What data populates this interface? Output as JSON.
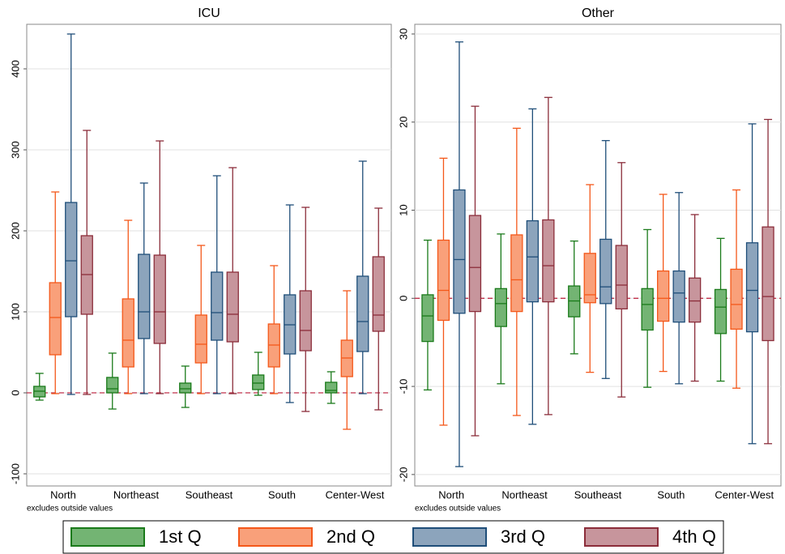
{
  "chart_data": [
    {
      "type": "box",
      "title": "ICU",
      "note": "excludes outside values",
      "categories": [
        "North",
        "Northeast",
        "Southeast",
        "South",
        "Center-West"
      ],
      "ylim": [
        -115,
        455
      ],
      "yticks": [
        -100,
        0,
        100,
        200,
        300,
        400
      ],
      "grid": true,
      "reference_line": 0,
      "reference_color": "#c0304a",
      "series": [
        {
          "name": "1st Q",
          "color": "#73b473",
          "edge": "#1a7a1a",
          "values": [
            {
              "low": -9,
              "q1": -5,
              "median": 2,
              "q3": 8,
              "high": 24
            },
            {
              "low": -20,
              "q1": 0,
              "median": 5,
              "q3": 19,
              "high": 49
            },
            {
              "low": -18,
              "q1": 0,
              "median": 5,
              "q3": 12,
              "high": 33
            },
            {
              "low": -3,
              "q1": 4,
              "median": 12,
              "q3": 22,
              "high": 50
            },
            {
              "low": -13,
              "q1": 0,
              "median": 3,
              "q3": 13,
              "high": 26
            }
          ]
        },
        {
          "name": "2nd Q",
          "color": "#f9a07a",
          "edge": "#f4581a",
          "values": [
            {
              "low": -1,
              "q1": 47,
              "median": 93,
              "q3": 136,
              "high": 248
            },
            {
              "low": -1,
              "q1": 32,
              "median": 65,
              "q3": 116,
              "high": 213
            },
            {
              "low": -1,
              "q1": 37,
              "median": 60,
              "q3": 96,
              "high": 182
            },
            {
              "low": -1,
              "q1": 32,
              "median": 59,
              "q3": 85,
              "high": 157
            },
            {
              "low": -45,
              "q1": 20,
              "median": 43,
              "q3": 65,
              "high": 126
            }
          ]
        },
        {
          "name": "3rd Q",
          "color": "#8ca4bc",
          "edge": "#1f4e79",
          "values": [
            {
              "low": -2,
              "q1": 94,
              "median": 163,
              "q3": 235,
              "high": 443
            },
            {
              "low": -1,
              "q1": 67,
              "median": 100,
              "q3": 171,
              "high": 259
            },
            {
              "low": -1,
              "q1": 65,
              "median": 99,
              "q3": 149,
              "high": 268
            },
            {
              "low": -12,
              "q1": 48,
              "median": 84,
              "q3": 121,
              "high": 232
            },
            {
              "low": -1,
              "q1": 51,
              "median": 88,
              "q3": 144,
              "high": 286
            }
          ]
        },
        {
          "name": "4th Q",
          "color": "#c7959c",
          "edge": "#8b2d3a",
          "values": [
            {
              "low": -2,
              "q1": 97,
              "median": 146,
              "q3": 194,
              "high": 324
            },
            {
              "low": -1,
              "q1": 61,
              "median": 100,
              "q3": 170,
              "high": 311
            },
            {
              "low": -1,
              "q1": 63,
              "median": 97,
              "q3": 149,
              "high": 278
            },
            {
              "low": -23,
              "q1": 52,
              "median": 77,
              "q3": 126,
              "high": 229
            },
            {
              "low": -21,
              "q1": 76,
              "median": 96,
              "q3": 168,
              "high": 228
            }
          ]
        }
      ]
    },
    {
      "type": "box",
      "title": "Other",
      "note": "excludes outside values",
      "categories": [
        "North",
        "Northeast",
        "Southeast",
        "South",
        "Center-West"
      ],
      "ylim": [
        -21.3,
        31.1
      ],
      "yticks": [
        -20,
        -10,
        0,
        10,
        20,
        30
      ],
      "grid": true,
      "reference_line": 0,
      "reference_color": "#c0304a",
      "series": [
        {
          "name": "1st Q",
          "color": "#73b473",
          "edge": "#1a7a1a",
          "values": [
            {
              "low": -10.4,
              "q1": -4.9,
              "median": -2.0,
              "q3": 0.4,
              "high": 6.6
            },
            {
              "low": -9.7,
              "q1": -3.2,
              "median": -0.6,
              "q3": 1.1,
              "high": 7.3
            },
            {
              "low": -6.3,
              "q1": -2.1,
              "median": -0.3,
              "q3": 1.4,
              "high": 6.5
            },
            {
              "low": -10.1,
              "q1": -3.6,
              "median": -0.7,
              "q3": 1.1,
              "high": 7.8
            },
            {
              "low": -9.4,
              "q1": -4.0,
              "median": -1.0,
              "q3": 1.0,
              "high": 6.8
            }
          ]
        },
        {
          "name": "2nd Q",
          "color": "#f9a07a",
          "edge": "#f4581a",
          "values": [
            {
              "low": -14.4,
              "q1": -2.5,
              "median": 0.9,
              "q3": 6.6,
              "high": 15.9
            },
            {
              "low": -13.3,
              "q1": -1.5,
              "median": 2.1,
              "q3": 7.2,
              "high": 19.3
            },
            {
              "low": -8.4,
              "q1": -0.5,
              "median": 0.4,
              "q3": 5.1,
              "high": 12.9
            },
            {
              "low": -8.3,
              "q1": -2.6,
              "median": 0,
              "q3": 3.1,
              "high": 11.8
            },
            {
              "low": -10.2,
              "q1": -3.5,
              "median": -0.7,
              "q3": 3.3,
              "high": 12.3
            }
          ]
        },
        {
          "name": "3rd Q",
          "color": "#8ca4bc",
          "edge": "#1f4e79",
          "values": [
            {
              "low": -19.1,
              "q1": -1.7,
              "median": 4.4,
              "q3": 12.3,
              "high": 29.1
            },
            {
              "low": -14.3,
              "q1": -0.4,
              "median": 4.7,
              "q3": 8.8,
              "high": 21.5
            },
            {
              "low": -9.1,
              "q1": -0.6,
              "median": 1.3,
              "q3": 6.7,
              "high": 17.9
            },
            {
              "low": -9.7,
              "q1": -2.7,
              "median": 0.6,
              "q3": 3.1,
              "high": 12.0
            },
            {
              "low": -16.5,
              "q1": -3.8,
              "median": 0.9,
              "q3": 6.3,
              "high": 19.8
            }
          ]
        },
        {
          "name": "4th Q",
          "color": "#c7959c",
          "edge": "#8b2d3a",
          "values": [
            {
              "low": -15.6,
              "q1": -1.5,
              "median": 3.5,
              "q3": 9.4,
              "high": 21.8
            },
            {
              "low": -13.2,
              "q1": -0.4,
              "median": 3.7,
              "q3": 8.9,
              "high": 22.8
            },
            {
              "low": -11.2,
              "q1": -1.2,
              "median": 1.5,
              "q3": 6.0,
              "high": 15.4
            },
            {
              "low": -9.4,
              "q1": -2.7,
              "median": -0.3,
              "q3": 2.3,
              "high": 9.5
            },
            {
              "low": -16.5,
              "q1": -4.8,
              "median": 0.2,
              "q3": 8.1,
              "high": 20.3
            }
          ]
        }
      ]
    }
  ]
}
